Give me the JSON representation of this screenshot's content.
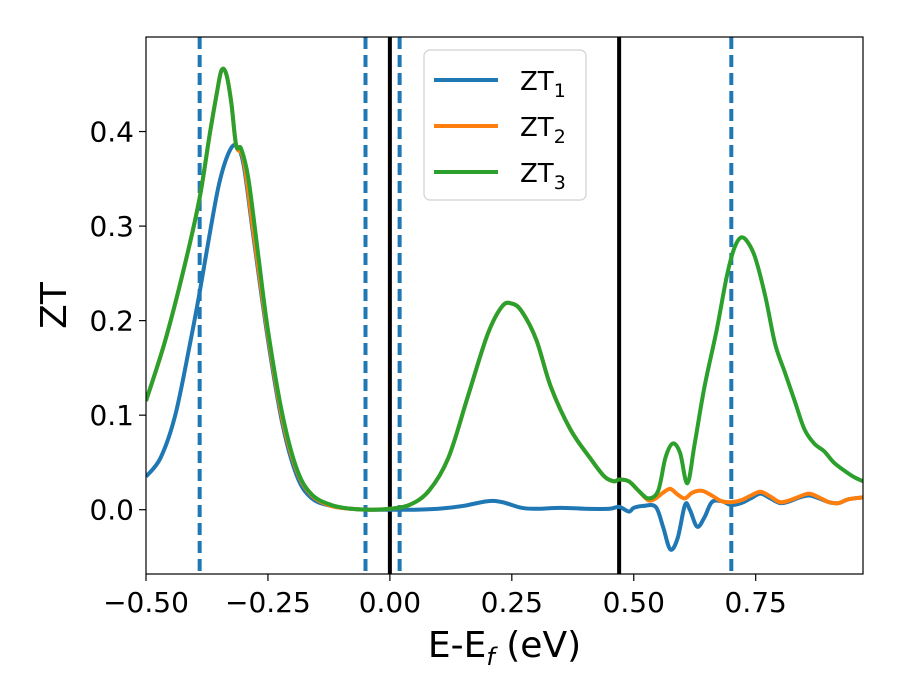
{
  "chart_data": {
    "type": "line",
    "xlabel": "E-E",
    "xlabel_sub": "f",
    "xlabel_unit": " (eV)",
    "ylabel": "ZT",
    "xlim": [
      -0.5,
      0.97
    ],
    "ylim": [
      -0.068,
      0.5
    ],
    "x_ticks": [
      -0.5,
      -0.25,
      0.0,
      0.25,
      0.5,
      0.75
    ],
    "x_tick_labels": [
      "−0.50",
      "−0.25",
      "0.00",
      "0.25",
      "0.50",
      "0.75"
    ],
    "y_ticks": [
      0.0,
      0.1,
      0.2,
      0.3,
      0.4
    ],
    "y_tick_labels": [
      "0.0",
      "0.1",
      "0.2",
      "0.3",
      "0.4"
    ],
    "grid": false,
    "legend_position": "top-center",
    "solid_vlines": [
      0.0,
      0.47
    ],
    "dashed_vlines": [
      -0.39,
      -0.05,
      0.02,
      0.7
    ],
    "series": [
      {
        "name": "ZT",
        "name_sub": "1",
        "color": "#1f77b4",
        "points": [
          [
            -0.5,
            0.035
          ],
          [
            -0.47,
            0.055
          ],
          [
            -0.44,
            0.1
          ],
          [
            -0.41,
            0.175
          ],
          [
            -0.39,
            0.23
          ],
          [
            -0.37,
            0.29
          ],
          [
            -0.35,
            0.345
          ],
          [
            -0.33,
            0.378
          ],
          [
            -0.315,
            0.385
          ],
          [
            -0.3,
            0.365
          ],
          [
            -0.28,
            0.29
          ],
          [
            -0.25,
            0.18
          ],
          [
            -0.22,
            0.09
          ],
          [
            -0.19,
            0.035
          ],
          [
            -0.16,
            0.012
          ],
          [
            -0.12,
            0.004
          ],
          [
            -0.08,
            0.001
          ],
          [
            -0.04,
            0.0
          ],
          [
            0.0,
            0.0
          ],
          [
            0.05,
            0.0
          ],
          [
            0.1,
            0.001
          ],
          [
            0.15,
            0.004
          ],
          [
            0.2,
            0.009
          ],
          [
            0.23,
            0.008
          ],
          [
            0.27,
            0.002
          ],
          [
            0.3,
            0.001
          ],
          [
            0.35,
            0.002
          ],
          [
            0.4,
            0.001
          ],
          [
            0.45,
            0.001
          ],
          [
            0.47,
            0.003
          ],
          [
            0.49,
            -0.002
          ],
          [
            0.5,
            0.002
          ],
          [
            0.52,
            0.004
          ],
          [
            0.545,
            0.003
          ],
          [
            0.56,
            -0.018
          ],
          [
            0.575,
            -0.042
          ],
          [
            0.59,
            -0.03
          ],
          [
            0.605,
            0.005
          ],
          [
            0.615,
            0.0
          ],
          [
            0.63,
            -0.018
          ],
          [
            0.645,
            -0.008
          ],
          [
            0.66,
            0.008
          ],
          [
            0.68,
            0.009
          ],
          [
            0.7,
            0.005
          ],
          [
            0.72,
            0.007
          ],
          [
            0.74,
            0.012
          ],
          [
            0.76,
            0.017
          ],
          [
            0.78,
            0.012
          ],
          [
            0.8,
            0.007
          ],
          [
            0.82,
            0.009
          ],
          [
            0.84,
            0.013
          ],
          [
            0.86,
            0.015
          ],
          [
            0.88,
            0.012
          ],
          [
            0.9,
            0.008
          ],
          [
            0.92,
            0.007
          ],
          [
            0.94,
            0.011
          ],
          [
            0.97,
            0.013
          ]
        ]
      },
      {
        "name": "ZT",
        "name_sub": "2",
        "color": "#ff7f0e",
        "points": [
          [
            -0.5,
            0.115
          ],
          [
            -0.46,
            0.18
          ],
          [
            -0.42,
            0.26
          ],
          [
            -0.39,
            0.33
          ],
          [
            -0.37,
            0.395
          ],
          [
            -0.355,
            0.44
          ],
          [
            -0.345,
            0.465
          ],
          [
            -0.335,
            0.46
          ],
          [
            -0.325,
            0.43
          ],
          [
            -0.315,
            0.385
          ],
          [
            -0.3,
            0.37
          ],
          [
            -0.28,
            0.295
          ],
          [
            -0.25,
            0.185
          ],
          [
            -0.22,
            0.095
          ],
          [
            -0.19,
            0.04
          ],
          [
            -0.16,
            0.015
          ],
          [
            -0.12,
            0.004
          ],
          [
            -0.08,
            0.001
          ],
          [
            -0.04,
            0.0
          ],
          [
            0.0,
            0.001
          ],
          [
            0.04,
            0.005
          ],
          [
            0.08,
            0.02
          ],
          [
            0.12,
            0.055
          ],
          [
            0.16,
            0.12
          ],
          [
            0.2,
            0.185
          ],
          [
            0.23,
            0.215
          ],
          [
            0.25,
            0.218
          ],
          [
            0.27,
            0.21
          ],
          [
            0.3,
            0.18
          ],
          [
            0.33,
            0.13
          ],
          [
            0.37,
            0.085
          ],
          [
            0.41,
            0.055
          ],
          [
            0.44,
            0.035
          ],
          [
            0.46,
            0.03
          ],
          [
            0.47,
            0.032
          ],
          [
            0.49,
            0.03
          ],
          [
            0.51,
            0.02
          ],
          [
            0.53,
            0.01
          ],
          [
            0.545,
            0.012
          ],
          [
            0.56,
            0.018
          ],
          [
            0.575,
            0.022
          ],
          [
            0.59,
            0.016
          ],
          [
            0.605,
            0.012
          ],
          [
            0.62,
            0.018
          ],
          [
            0.64,
            0.02
          ],
          [
            0.66,
            0.015
          ],
          [
            0.68,
            0.009
          ],
          [
            0.7,
            0.008
          ],
          [
            0.72,
            0.01
          ],
          [
            0.74,
            0.015
          ],
          [
            0.76,
            0.019
          ],
          [
            0.78,
            0.014
          ],
          [
            0.8,
            0.008
          ],
          [
            0.82,
            0.01
          ],
          [
            0.84,
            0.014
          ],
          [
            0.86,
            0.017
          ],
          [
            0.88,
            0.013
          ],
          [
            0.9,
            0.008
          ],
          [
            0.92,
            0.007
          ],
          [
            0.94,
            0.011
          ],
          [
            0.97,
            0.013
          ]
        ]
      },
      {
        "name": "ZT",
        "name_sub": "3",
        "color": "#2ca02c",
        "points": [
          [
            -0.5,
            0.115
          ],
          [
            -0.46,
            0.18
          ],
          [
            -0.42,
            0.26
          ],
          [
            -0.39,
            0.33
          ],
          [
            -0.37,
            0.395
          ],
          [
            -0.355,
            0.44
          ],
          [
            -0.345,
            0.465
          ],
          [
            -0.335,
            0.46
          ],
          [
            -0.325,
            0.43
          ],
          [
            -0.315,
            0.385
          ],
          [
            -0.305,
            0.382
          ],
          [
            -0.29,
            0.35
          ],
          [
            -0.27,
            0.27
          ],
          [
            -0.25,
            0.19
          ],
          [
            -0.22,
            0.1
          ],
          [
            -0.19,
            0.042
          ],
          [
            -0.16,
            0.016
          ],
          [
            -0.12,
            0.005
          ],
          [
            -0.08,
            0.001
          ],
          [
            -0.04,
            0.0
          ],
          [
            0.0,
            0.001
          ],
          [
            0.04,
            0.005
          ],
          [
            0.08,
            0.02
          ],
          [
            0.12,
            0.055
          ],
          [
            0.16,
            0.12
          ],
          [
            0.2,
            0.185
          ],
          [
            0.23,
            0.215
          ],
          [
            0.25,
            0.218
          ],
          [
            0.27,
            0.21
          ],
          [
            0.3,
            0.18
          ],
          [
            0.33,
            0.13
          ],
          [
            0.37,
            0.085
          ],
          [
            0.41,
            0.055
          ],
          [
            0.44,
            0.035
          ],
          [
            0.46,
            0.03
          ],
          [
            0.47,
            0.032
          ],
          [
            0.49,
            0.03
          ],
          [
            0.51,
            0.02
          ],
          [
            0.53,
            0.012
          ],
          [
            0.55,
            0.02
          ],
          [
            0.565,
            0.055
          ],
          [
            0.58,
            0.07
          ],
          [
            0.595,
            0.06
          ],
          [
            0.61,
            0.028
          ],
          [
            0.625,
            0.07
          ],
          [
            0.645,
            0.13
          ],
          [
            0.67,
            0.19
          ],
          [
            0.69,
            0.245
          ],
          [
            0.705,
            0.275
          ],
          [
            0.72,
            0.288
          ],
          [
            0.735,
            0.282
          ],
          [
            0.75,
            0.265
          ],
          [
            0.77,
            0.225
          ],
          [
            0.79,
            0.175
          ],
          [
            0.81,
            0.145
          ],
          [
            0.83,
            0.115
          ],
          [
            0.85,
            0.085
          ],
          [
            0.87,
            0.07
          ],
          [
            0.89,
            0.062
          ],
          [
            0.91,
            0.05
          ],
          [
            0.93,
            0.042
          ],
          [
            0.95,
            0.035
          ],
          [
            0.97,
            0.03
          ]
        ]
      }
    ]
  }
}
